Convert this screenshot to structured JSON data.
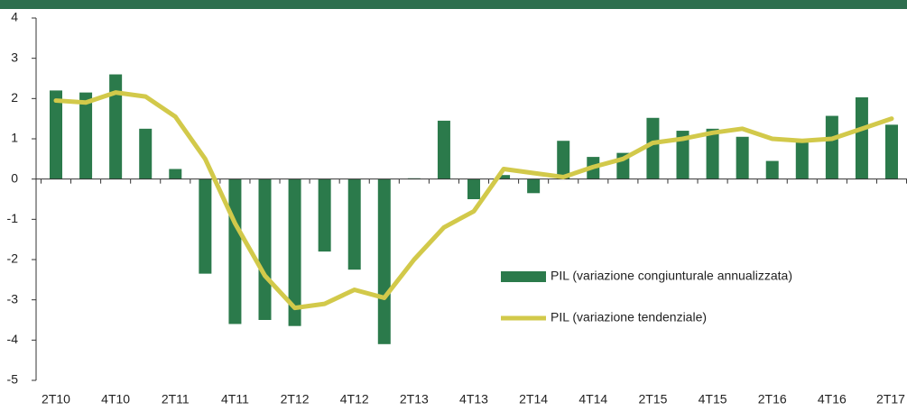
{
  "chart_data": {
    "type": "bar_line",
    "categories": [
      "2T10",
      null,
      "4T10",
      null,
      "2T11",
      null,
      "4T11",
      null,
      "2T12",
      null,
      "4T12",
      null,
      "2T13",
      null,
      "4T13",
      null,
      "2T14",
      null,
      "4T14",
      null,
      "2T15",
      null,
      "4T15",
      null,
      "2T16",
      null,
      "4T16",
      null,
      "2T17"
    ],
    "series": [
      {
        "name": "PIL (variazione congiunturale annualizzata)",
        "type": "bar",
        "color": "#2b7a4b",
        "values": [
          2.2,
          2.15,
          2.6,
          1.25,
          0.25,
          -2.35,
          -3.6,
          -3.5,
          -3.65,
          -1.8,
          -2.25,
          -4.1,
          0.02,
          1.45,
          -0.5,
          0.1,
          -0.35,
          0.95,
          0.55,
          0.65,
          1.52,
          1.2,
          1.25,
          1.05,
          0.45,
          0.95,
          1.57,
          2.03,
          1.35
        ]
      },
      {
        "name": "PIL (variazione tendenziale)",
        "type": "line",
        "color": "#d2c94a",
        "values": [
          1.95,
          1.9,
          2.15,
          2.05,
          1.55,
          0.5,
          -1.1,
          -2.4,
          -3.2,
          -3.1,
          -2.75,
          -2.95,
          -2.0,
          -1.2,
          -0.8,
          0.25,
          0.15,
          0.05,
          0.3,
          0.5,
          0.9,
          1.0,
          1.15,
          1.25,
          1.0,
          0.95,
          1.0,
          1.25,
          1.5
        ]
      }
    ],
    "ylim": [
      -5,
      4
    ],
    "yticks": [
      -5,
      -4,
      -3,
      -2,
      -1,
      0,
      1,
      2,
      3,
      4
    ]
  }
}
